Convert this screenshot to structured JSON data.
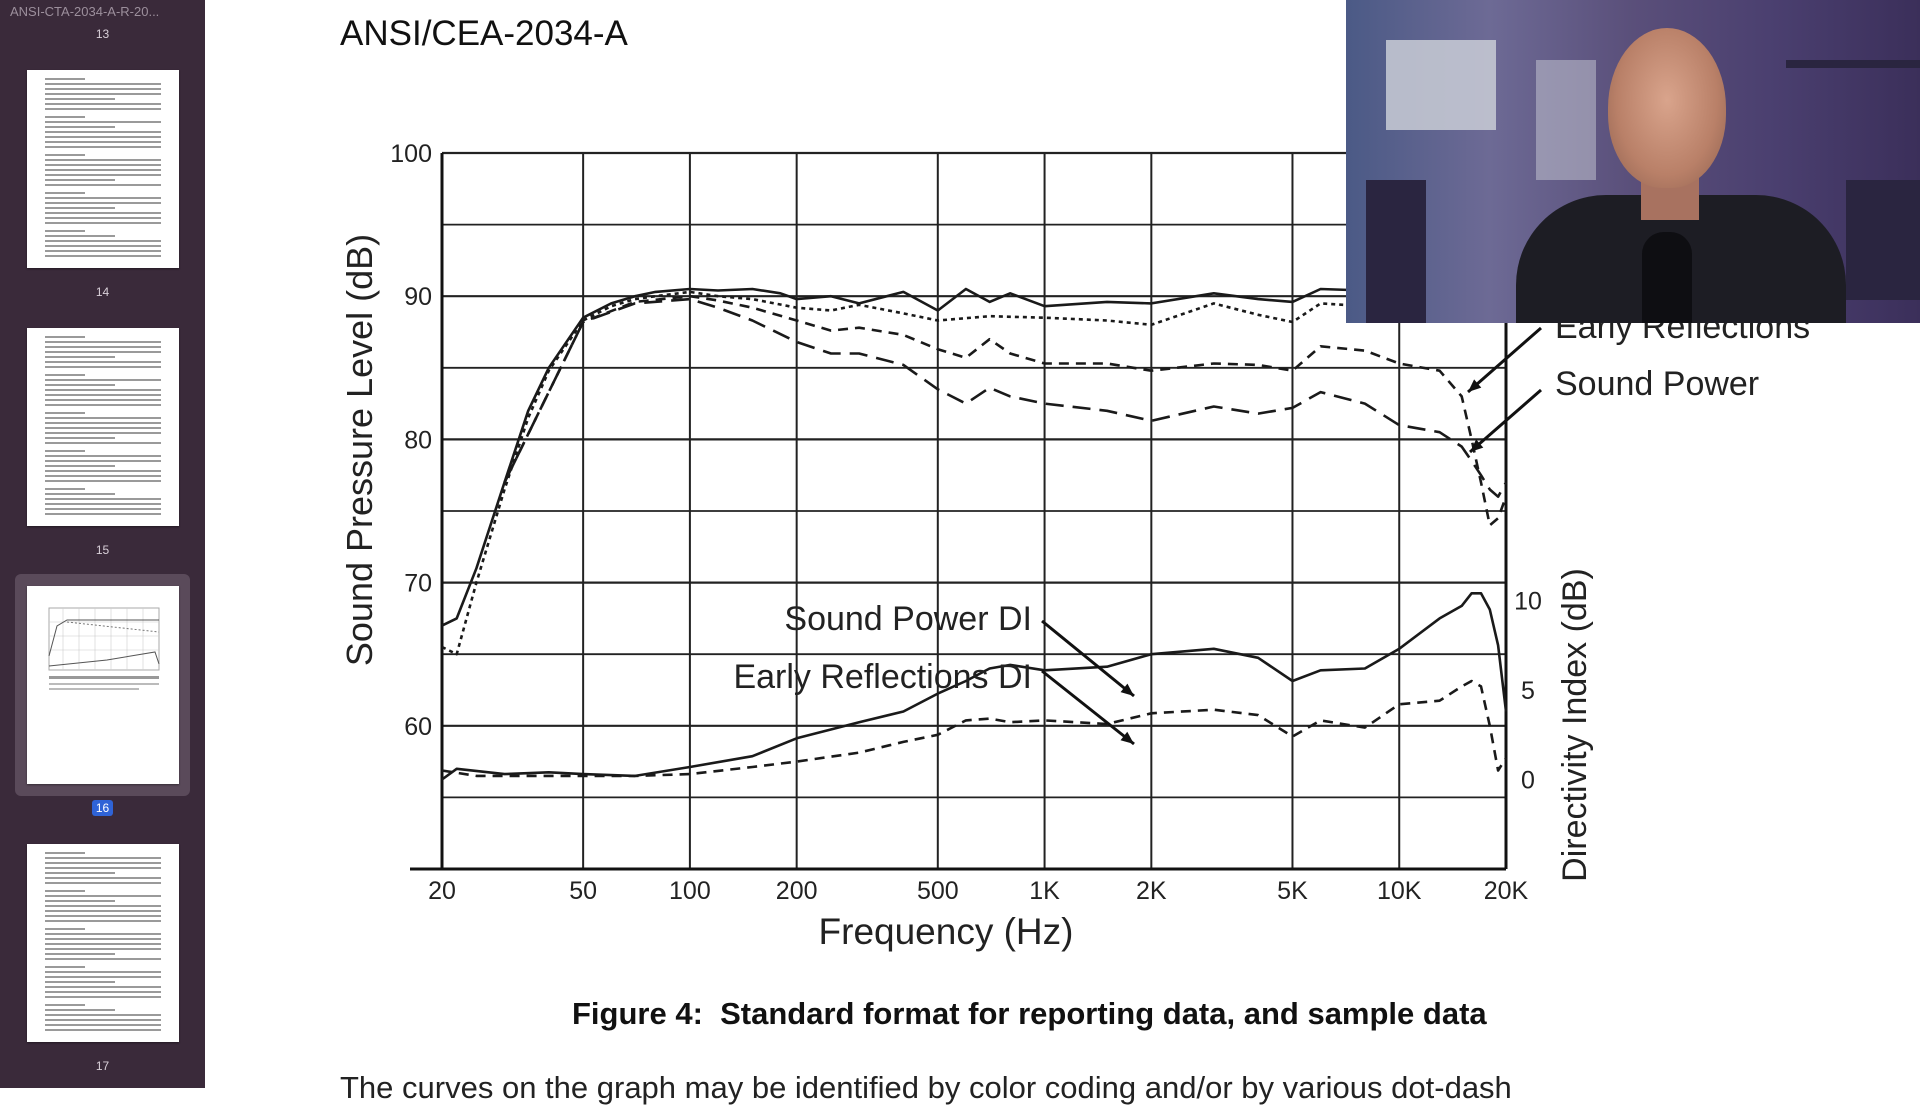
{
  "sidebar": {
    "doc_title": "ANSI-CTA-2034-A-R-20...",
    "pages": [
      {
        "number": "13",
        "current": false
      },
      {
        "number": "14",
        "current": false
      },
      {
        "number": "15",
        "current": false
      },
      {
        "number": "16",
        "current": true
      },
      {
        "number": "17",
        "current": false
      }
    ]
  },
  "document": {
    "header": "ANSI/CEA-2034-A",
    "caption": "Figure 4:  Standard format for reporting data, and sample data",
    "body_text_partial": "The curves on the graph may be identified by color coding and/or by various dot-dash"
  },
  "chart_data": {
    "type": "line",
    "xlabel": "Frequency (Hz)",
    "ylabel": "Sound Pressure Level (dB)",
    "y2label": "Directivity Index (dB)",
    "x_scale": "log",
    "xlim": [
      20,
      20000
    ],
    "ylim": [
      50,
      100
    ],
    "y2lim": [
      -5,
      35
    ],
    "x_ticks": [
      20,
      50,
      100,
      200,
      500,
      1000,
      2000,
      5000,
      10000,
      20000
    ],
    "x_tick_labels": [
      "20",
      "50",
      "100",
      "200",
      "500",
      "1K",
      "2K",
      "5K",
      "10K",
      "20K"
    ],
    "y_ticks": [
      60,
      70,
      80,
      90,
      100
    ],
    "y_tick_labels": [
      "60",
      "70",
      "80",
      "90",
      "100"
    ],
    "y2_ticks": [
      0,
      5,
      10
    ],
    "y2_tick_labels": [
      "0",
      "5",
      "10"
    ],
    "grid": true,
    "annotations": [
      {
        "text": "Early Reflections",
        "series": "Early Reflections"
      },
      {
        "text": "Sound Power",
        "series": "Sound Power"
      },
      {
        "text": "Sound Power DI",
        "series": "Sound Power DI"
      },
      {
        "text": "Early Reflections DI",
        "series": "Early Reflections DI"
      }
    ],
    "series": [
      {
        "axis": "left",
        "style": "solid",
        "x": [
          20,
          22,
          25,
          30,
          35,
          40,
          50,
          60,
          70,
          80,
          100,
          120,
          150,
          180,
          200,
          250,
          300,
          400,
          500,
          600,
          700,
          800,
          1000,
          1500,
          2000,
          3000,
          4000,
          5000,
          6000,
          8000,
          10000,
          13000
        ],
        "y": [
          67,
          67.5,
          71,
          77,
          82,
          85,
          88.5,
          89.5,
          90,
          90.3,
          90.5,
          90.4,
          90.5,
          90.2,
          89.8,
          90,
          89.5,
          90.3,
          89,
          90.5,
          89.6,
          90.2,
          89.3,
          89.6,
          89.5,
          90.2,
          89.8,
          89.6,
          90.5,
          90.4,
          90.3,
          90
        ]
      },
      {
        "axis": "left",
        "style": "dotted",
        "x": [
          20,
          22,
          25,
          30,
          35,
          40,
          50,
          60,
          70,
          80,
          100,
          120,
          150,
          200,
          250,
          300,
          400,
          500,
          700,
          1000,
          1500,
          2000,
          3000,
          4000,
          5000,
          6000,
          8000,
          10000,
          13000
        ],
        "y": [
          65.5,
          65,
          70,
          76.5,
          81.5,
          84.8,
          88.3,
          89.3,
          89.8,
          90,
          90.3,
          90,
          89.8,
          89.2,
          89,
          89.4,
          88.8,
          88.3,
          88.6,
          88.5,
          88.3,
          88,
          89.5,
          88.7,
          88.2,
          89.5,
          89.3,
          89.3,
          89
        ]
      },
      {
        "axis": "left",
        "style": "dashed",
        "name": "Early Reflections",
        "x": [
          30,
          50,
          70,
          100,
          120,
          150,
          200,
          250,
          300,
          400,
          500,
          600,
          700,
          800,
          1000,
          1500,
          2000,
          3000,
          4000,
          5000,
          6000,
          8000,
          10000,
          13000,
          15000,
          16000,
          17000,
          18000,
          19000,
          20000
        ],
        "y": [
          77,
          88.2,
          89.6,
          90,
          89.7,
          89.2,
          88.3,
          87.6,
          87.8,
          87.3,
          86.3,
          85.7,
          87,
          86,
          85.3,
          85.3,
          84.8,
          85.3,
          85.2,
          84.8,
          86.5,
          86.2,
          85.3,
          84.8,
          83,
          80,
          77,
          74,
          74.5,
          76
        ]
      },
      {
        "axis": "left",
        "style": "long-dash",
        "name": "Sound Power",
        "x": [
          30,
          50,
          70,
          100,
          120,
          150,
          200,
          250,
          300,
          400,
          500,
          600,
          700,
          800,
          1000,
          1500,
          2000,
          3000,
          4000,
          5000,
          6000,
          8000,
          10000,
          13000,
          15000,
          16000,
          17000,
          18000,
          19000,
          20000
        ],
        "y": [
          77,
          88.2,
          89.5,
          89.8,
          89.2,
          88.3,
          86.8,
          86,
          86,
          85.2,
          83.5,
          82.5,
          83.6,
          83,
          82.5,
          82,
          81.3,
          82.3,
          81.8,
          82.2,
          83.3,
          82.5,
          81,
          80.5,
          79.5,
          78.5,
          77.5,
          76.5,
          76,
          77
        ]
      },
      {
        "axis": "right",
        "style": "solid",
        "name": "Sound Power DI",
        "x": [
          20,
          22,
          30,
          40,
          50,
          70,
          100,
          150,
          200,
          300,
          400,
          500,
          600,
          700,
          800,
          1000,
          1500,
          2000,
          3000,
          4000,
          5000,
          6000,
          8000,
          10000,
          13000,
          15000,
          16000,
          17000,
          18000,
          19000,
          20000
        ],
        "y": [
          0,
          0.6,
          0.3,
          0.4,
          0.3,
          0.2,
          0.7,
          1.3,
          2.3,
          3.2,
          3.8,
          4.8,
          5.5,
          6.2,
          6.4,
          6.1,
          6.3,
          7.0,
          7.3,
          6.8,
          5.5,
          6.1,
          6.2,
          7.3,
          9.0,
          9.7,
          10.4,
          10.4,
          9.5,
          7.5,
          3.8
        ]
      },
      {
        "axis": "right",
        "style": "dashed",
        "name": "Early Reflections DI",
        "x": [
          20,
          25,
          30,
          40,
          50,
          70,
          100,
          150,
          200,
          300,
          400,
          500,
          600,
          700,
          800,
          1000,
          1500,
          2000,
          3000,
          4000,
          5000,
          6000,
          8000,
          10000,
          13000,
          15000,
          16000,
          17000,
          18000,
          19000,
          20000
        ],
        "y": [
          0.5,
          0.2,
          0.2,
          0.2,
          0.2,
          0.2,
          0.3,
          0.7,
          1.0,
          1.5,
          2.1,
          2.5,
          3.3,
          3.4,
          3.2,
          3.3,
          3.1,
          3.7,
          3.9,
          3.6,
          2.4,
          3.3,
          2.9,
          4.2,
          4.4,
          5.2,
          5.5,
          5.2,
          3.0,
          0.5,
          1.2
        ]
      }
    ]
  },
  "webcam": {
    "description_icon": "presenter-video-icon"
  }
}
